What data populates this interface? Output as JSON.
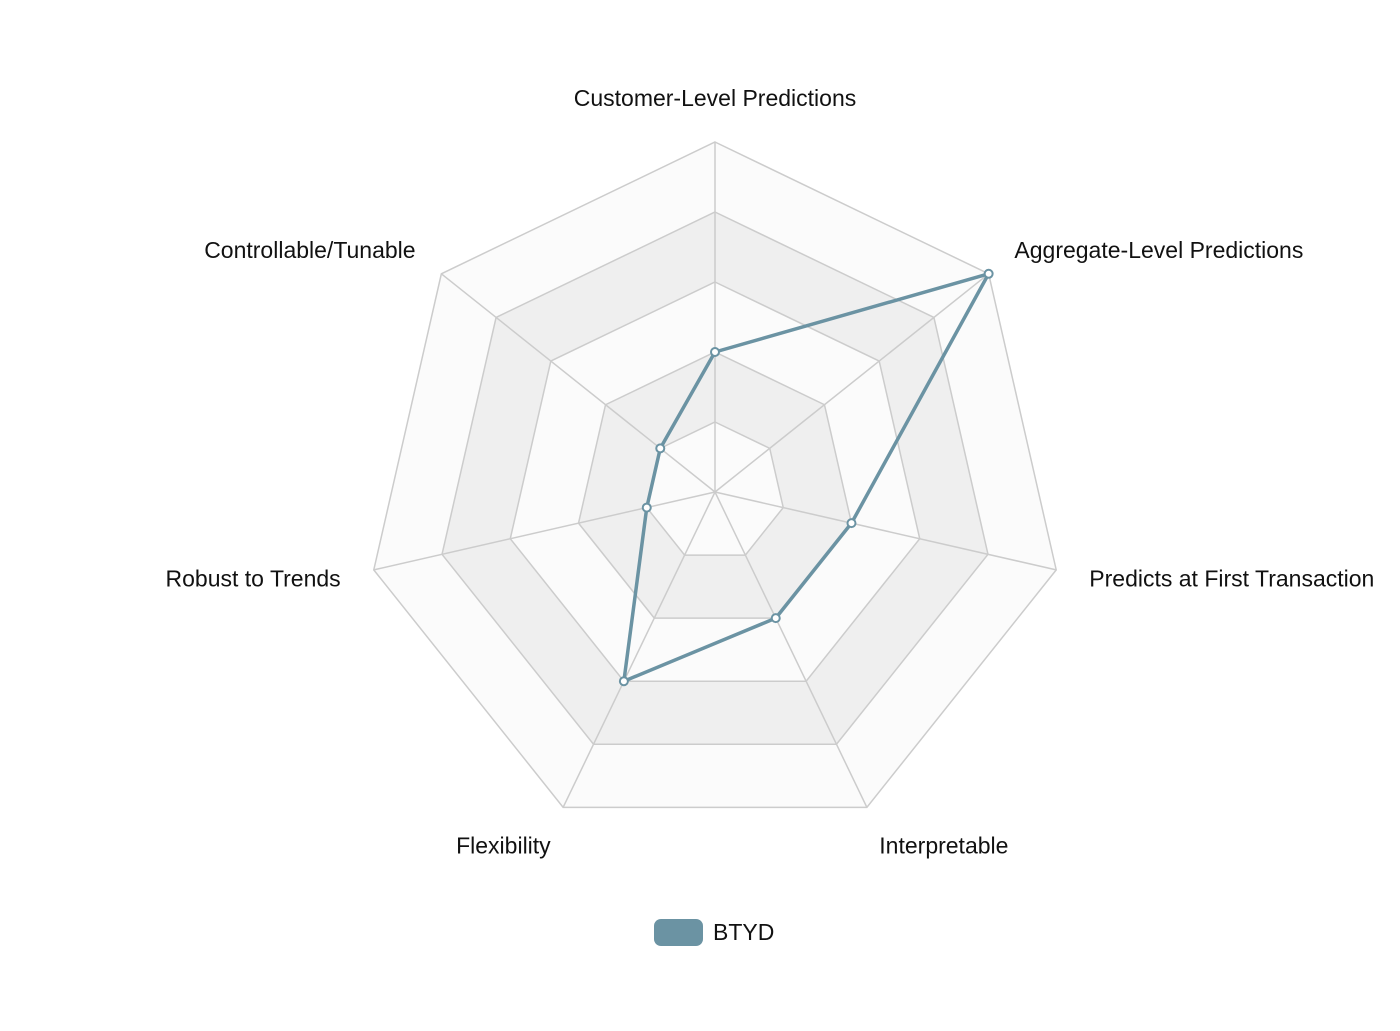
{
  "chart_data": {
    "type": "radar",
    "title": "",
    "axes": [
      "Customer-Level Predictions",
      "Aggregate-Level Predictions",
      "Predicts at First Transaction",
      "Interpretable",
      "Flexibility",
      "Robust to Trends",
      "Controllable/Tunable"
    ],
    "rlim": [
      0,
      5
    ],
    "rings": 5,
    "series": [
      {
        "name": "BTYD",
        "color": "#6b93a3",
        "values": [
          2,
          5,
          2,
          2,
          3,
          1,
          1
        ]
      }
    ],
    "legend": {
      "position": "bottom-center",
      "entries": [
        "BTYD"
      ]
    },
    "colors": {
      "grid_line": "#cccccc",
      "band_shaded": "#efefef",
      "band_light": "#fbfbfb",
      "series": "#6b93a3"
    }
  }
}
